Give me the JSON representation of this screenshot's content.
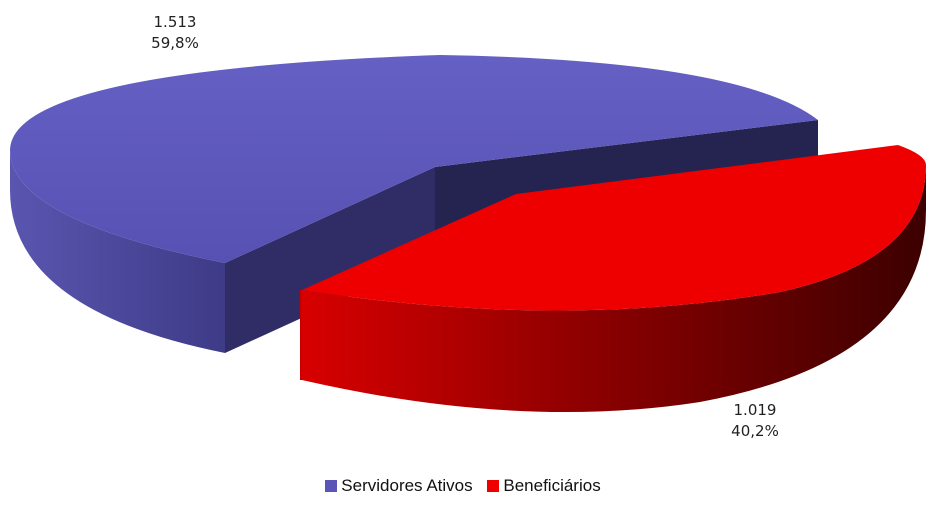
{
  "chart_data": {
    "type": "pie",
    "style": "3d-exploded",
    "slices": [
      {
        "name": "Servidores Ativos",
        "value": 1513,
        "value_label": "1.513",
        "percent_label": "59,8%",
        "color": "#5b55b8"
      },
      {
        "name": "Beneficiários",
        "value": 1019,
        "value_label": "1.019",
        "percent_label": "40,2%",
        "color": "#ee0000"
      }
    ],
    "legend_position": "bottom"
  }
}
